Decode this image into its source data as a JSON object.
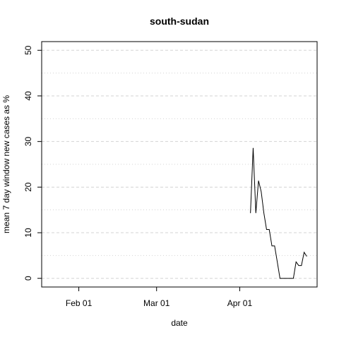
{
  "chart_data": {
    "type": "line",
    "title": "south-sudan",
    "xlabel": "date",
    "ylabel": "mean  7  day window new cases as %",
    "x_ticks": [
      "2020-02-01",
      "2020-03-01",
      "2020-04-01"
    ],
    "x_tick_labels": [
      "Feb 01",
      "Mar 01",
      "Apr 01"
    ],
    "xlim": [
      "2020-01-22",
      "2020-04-26"
    ],
    "ylim": [
      0,
      50
    ],
    "y_ticks": [
      0,
      10,
      20,
      30,
      40,
      50
    ],
    "y_tick_labels": [
      "0",
      "10",
      "20",
      "30",
      "40",
      "50"
    ],
    "grid": true,
    "series": [
      {
        "x": [
          "2020-04-05",
          "2020-04-06",
          "2020-04-07",
          "2020-04-08",
          "2020-04-09",
          "2020-04-10",
          "2020-04-11",
          "2020-04-12",
          "2020-04-13",
          "2020-04-14",
          "2020-04-15",
          "2020-04-16",
          "2020-04-17",
          "2020-04-18",
          "2020-04-19",
          "2020-04-20",
          "2020-04-21",
          "2020-04-22",
          "2020-04-23",
          "2020-04-24",
          "2020-04-25",
          "2020-04-26"
        ],
        "values": [
          14.3,
          28.6,
          14.3,
          21.4,
          19.0,
          14.3,
          10.7,
          10.7,
          7.1,
          7.1,
          3.6,
          0,
          0,
          0,
          0,
          0,
          0,
          3.6,
          2.8,
          2.8,
          5.7,
          4.8
        ],
        "color": "#000000"
      }
    ]
  }
}
